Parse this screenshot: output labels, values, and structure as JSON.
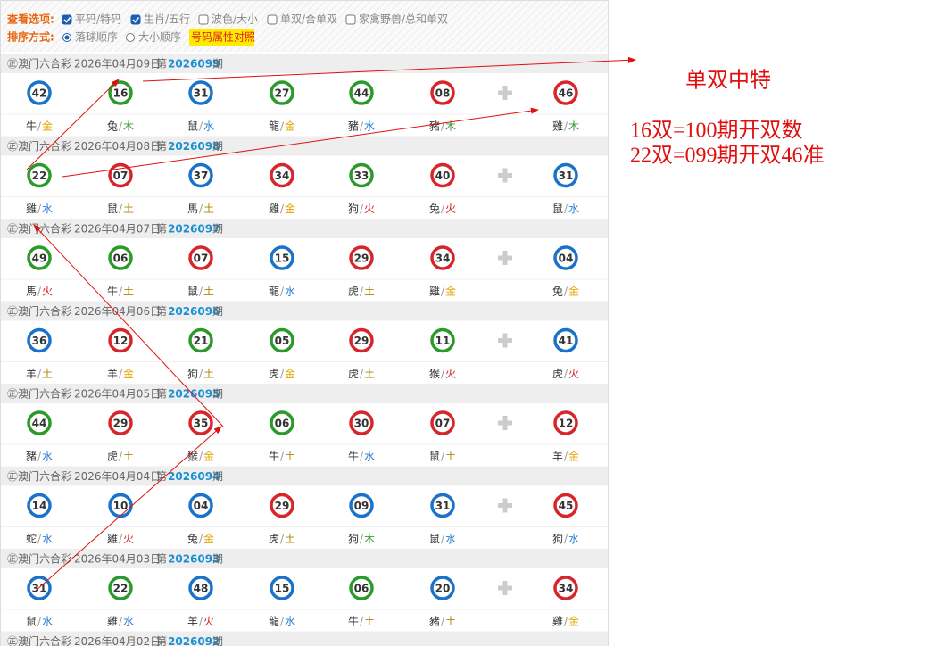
{
  "toolbar": {
    "view_label": "查看选项:",
    "options": [
      {
        "label": "平码/特码",
        "checked": true
      },
      {
        "label": "生肖/五行",
        "checked": true
      },
      {
        "label": "波色/大小",
        "checked": false
      },
      {
        "label": "单双/合单双",
        "checked": false
      },
      {
        "label": "家禽野兽/总和单双",
        "checked": false
      }
    ],
    "sort_label": "排序方式:",
    "sort_options": [
      {
        "label": "落球顺序",
        "selected": true
      },
      {
        "label": "大小顺序",
        "selected": false
      }
    ],
    "button": "号码属性对照"
  },
  "separator": "/",
  "draws": [
    {
      "lottery": "㊣澳门六合彩",
      "date": "2026年04月09日",
      "prefix": "第",
      "period": "2026099",
      "suffix": "期",
      "balls": [
        {
          "num": "42",
          "color": "#1a73c9",
          "zodiac": "牛",
          "element": "金",
          "element_color": "#e0a800"
        },
        {
          "num": "16",
          "color": "#2a9a2a",
          "zodiac": "兔",
          "element": "木",
          "element_color": "#3a9a3a"
        },
        {
          "num": "31",
          "color": "#1a73c9",
          "zodiac": "鼠",
          "element": "水",
          "element_color": "#2a7fd1"
        },
        {
          "num": "27",
          "color": "#2a9a2a",
          "zodiac": "龍",
          "element": "金",
          "element_color": "#e0a800"
        },
        {
          "num": "44",
          "color": "#2a9a2a",
          "zodiac": "豬",
          "element": "水",
          "element_color": "#2a7fd1"
        },
        {
          "num": "08",
          "color": "#d7262b",
          "zodiac": "豬",
          "element": "木",
          "element_color": "#3a9a3a"
        },
        {
          "num": "46",
          "color": "#d7262b",
          "zodiac": "雞",
          "element": "木",
          "element_color": "#3a9a3a"
        }
      ]
    },
    {
      "lottery": "㊣澳门六合彩",
      "date": "2026年04月08日",
      "prefix": "第",
      "period": "2026098",
      "suffix": "期",
      "balls": [
        {
          "num": "22",
          "color": "#2a9a2a",
          "zodiac": "雞",
          "element": "水",
          "element_color": "#2a7fd1"
        },
        {
          "num": "07",
          "color": "#d7262b",
          "zodiac": "鼠",
          "element": "土",
          "element_color": "#b08600"
        },
        {
          "num": "37",
          "color": "#1a73c9",
          "zodiac": "馬",
          "element": "土",
          "element_color": "#b08600"
        },
        {
          "num": "34",
          "color": "#d7262b",
          "zodiac": "雞",
          "element": "金",
          "element_color": "#e0a800"
        },
        {
          "num": "33",
          "color": "#2a9a2a",
          "zodiac": "狗",
          "element": "火",
          "element_color": "#d22222"
        },
        {
          "num": "40",
          "color": "#d7262b",
          "zodiac": "兔",
          "element": "火",
          "element_color": "#d22222"
        },
        {
          "num": "31",
          "color": "#1a73c9",
          "zodiac": "鼠",
          "element": "水",
          "element_color": "#2a7fd1"
        }
      ]
    },
    {
      "lottery": "㊣澳门六合彩",
      "date": "2026年04月07日",
      "prefix": "第",
      "period": "2026097",
      "suffix": "期",
      "balls": [
        {
          "num": "49",
          "color": "#2a9a2a",
          "zodiac": "馬",
          "element": "火",
          "element_color": "#d22222"
        },
        {
          "num": "06",
          "color": "#2a9a2a",
          "zodiac": "牛",
          "element": "土",
          "element_color": "#b08600"
        },
        {
          "num": "07",
          "color": "#d7262b",
          "zodiac": "鼠",
          "element": "土",
          "element_color": "#b08600"
        },
        {
          "num": "15",
          "color": "#1a73c9",
          "zodiac": "龍",
          "element": "水",
          "element_color": "#2a7fd1"
        },
        {
          "num": "29",
          "color": "#d7262b",
          "zodiac": "虎",
          "element": "土",
          "element_color": "#b08600"
        },
        {
          "num": "34",
          "color": "#d7262b",
          "zodiac": "雞",
          "element": "金",
          "element_color": "#e0a800"
        },
        {
          "num": "04",
          "color": "#1a73c9",
          "zodiac": "兔",
          "element": "金",
          "element_color": "#e0a800"
        }
      ]
    },
    {
      "lottery": "㊣澳门六合彩",
      "date": "2026年04月06日",
      "prefix": "第",
      "period": "2026096",
      "suffix": "期",
      "balls": [
        {
          "num": "36",
          "color": "#1a73c9",
          "zodiac": "羊",
          "element": "土",
          "element_color": "#b08600"
        },
        {
          "num": "12",
          "color": "#d7262b",
          "zodiac": "羊",
          "element": "金",
          "element_color": "#e0a800"
        },
        {
          "num": "21",
          "color": "#2a9a2a",
          "zodiac": "狗",
          "element": "土",
          "element_color": "#b08600"
        },
        {
          "num": "05",
          "color": "#2a9a2a",
          "zodiac": "虎",
          "element": "金",
          "element_color": "#e0a800"
        },
        {
          "num": "29",
          "color": "#d7262b",
          "zodiac": "虎",
          "element": "土",
          "element_color": "#b08600"
        },
        {
          "num": "11",
          "color": "#2a9a2a",
          "zodiac": "猴",
          "element": "火",
          "element_color": "#d22222"
        },
        {
          "num": "41",
          "color": "#1a73c9",
          "zodiac": "虎",
          "element": "火",
          "element_color": "#d22222"
        }
      ]
    },
    {
      "lottery": "㊣澳门六合彩",
      "date": "2026年04月05日",
      "prefix": "第",
      "period": "2026095",
      "suffix": "期",
      "balls": [
        {
          "num": "44",
          "color": "#2a9a2a",
          "zodiac": "豬",
          "element": "水",
          "element_color": "#2a7fd1"
        },
        {
          "num": "29",
          "color": "#d7262b",
          "zodiac": "虎",
          "element": "土",
          "element_color": "#b08600"
        },
        {
          "num": "35",
          "color": "#d7262b",
          "zodiac": "猴",
          "element": "金",
          "element_color": "#e0a800"
        },
        {
          "num": "06",
          "color": "#2a9a2a",
          "zodiac": "牛",
          "element": "土",
          "element_color": "#b08600"
        },
        {
          "num": "30",
          "color": "#d7262b",
          "zodiac": "牛",
          "element": "水",
          "element_color": "#2a7fd1"
        },
        {
          "num": "07",
          "color": "#d7262b",
          "zodiac": "鼠",
          "element": "土",
          "element_color": "#b08600"
        },
        {
          "num": "12",
          "color": "#d7262b",
          "zodiac": "羊",
          "element": "金",
          "element_color": "#e0a800"
        }
      ]
    },
    {
      "lottery": "㊣澳门六合彩",
      "date": "2026年04月04日",
      "prefix": "第",
      "period": "2026094",
      "suffix": "期",
      "balls": [
        {
          "num": "14",
          "color": "#1a73c9",
          "zodiac": "蛇",
          "element": "水",
          "element_color": "#2a7fd1"
        },
        {
          "num": "10",
          "color": "#1a73c9",
          "zodiac": "雞",
          "element": "火",
          "element_color": "#d22222"
        },
        {
          "num": "04",
          "color": "#1a73c9",
          "zodiac": "兔",
          "element": "金",
          "element_color": "#e0a800"
        },
        {
          "num": "29",
          "color": "#d7262b",
          "zodiac": "虎",
          "element": "土",
          "element_color": "#b08600"
        },
        {
          "num": "09",
          "color": "#1a73c9",
          "zodiac": "狗",
          "element": "木",
          "element_color": "#3a9a3a"
        },
        {
          "num": "31",
          "color": "#1a73c9",
          "zodiac": "鼠",
          "element": "水",
          "element_color": "#2a7fd1"
        },
        {
          "num": "45",
          "color": "#d7262b",
          "zodiac": "狗",
          "element": "水",
          "element_color": "#2a7fd1"
        }
      ]
    },
    {
      "lottery": "㊣澳门六合彩",
      "date": "2026年04月03日",
      "prefix": "第",
      "period": "2026093",
      "suffix": "期",
      "balls": [
        {
          "num": "31",
          "color": "#1a73c9",
          "zodiac": "鼠",
          "element": "水",
          "element_color": "#2a7fd1"
        },
        {
          "num": "22",
          "color": "#2a9a2a",
          "zodiac": "雞",
          "element": "水",
          "element_color": "#2a7fd1"
        },
        {
          "num": "48",
          "color": "#1a73c9",
          "zodiac": "羊",
          "element": "火",
          "element_color": "#d22222"
        },
        {
          "num": "15",
          "color": "#1a73c9",
          "zodiac": "龍",
          "element": "水",
          "element_color": "#2a7fd1"
        },
        {
          "num": "06",
          "color": "#2a9a2a",
          "zodiac": "牛",
          "element": "土",
          "element_color": "#b08600"
        },
        {
          "num": "20",
          "color": "#1a73c9",
          "zodiac": "豬",
          "element": "土",
          "element_color": "#b08600"
        },
        {
          "num": "34",
          "color": "#d7262b",
          "zodiac": "雞",
          "element": "金",
          "element_color": "#e0a800"
        }
      ]
    },
    {
      "lottery": "㊣澳门六合彩",
      "date": "2026年04月02日",
      "prefix": "第",
      "period": "2026092",
      "suffix": "期",
      "balls": []
    }
  ],
  "annotations": [
    "单双中特",
    "16双=100期开双数",
    "22双=099期开双46准"
  ]
}
